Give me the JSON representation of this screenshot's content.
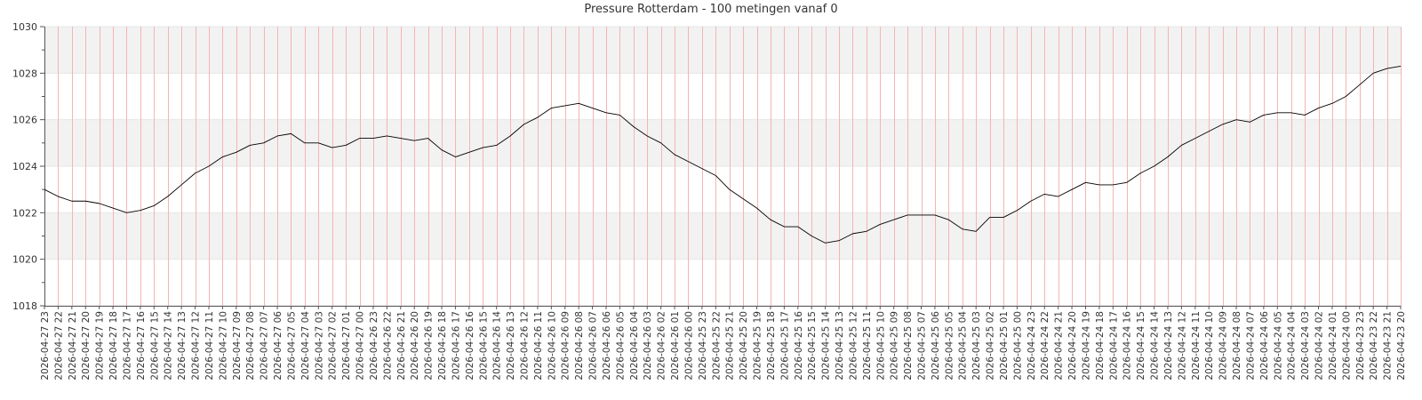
{
  "chart_data": {
    "type": "line",
    "title": "Pressure Rotterdam - 100 metingen vanaf 0",
    "xlabel": "",
    "ylabel": "",
    "ylim": [
      1018,
      1030
    ],
    "yticks": [
      1018,
      1020,
      1022,
      1024,
      1026,
      1028,
      1030
    ],
    "grid": true,
    "legend": "none",
    "x": [
      "2026-04-27 23",
      "2026-04-27 22",
      "2026-04-27 21",
      "2026-04-27 20",
      "2026-04-27 19",
      "2026-04-27 18",
      "2026-04-27 17",
      "2026-04-27 16",
      "2026-04-27 15",
      "2026-04-27 14",
      "2026-04-27 13",
      "2026-04-27 12",
      "2026-04-27 11",
      "2026-04-27 10",
      "2026-04-27 09",
      "2026-04-27 08",
      "2026-04-27 07",
      "2026-04-27 06",
      "2026-04-27 05",
      "2026-04-27 04",
      "2026-04-27 03",
      "2026-04-27 02",
      "2026-04-27 01",
      "2026-04-27 00",
      "2026-04-26 23",
      "2026-04-26 22",
      "2026-04-26 21",
      "2026-04-26 20",
      "2026-04-26 19",
      "2026-04-26 18",
      "2026-04-26 17",
      "2026-04-26 16",
      "2026-04-26 15",
      "2026-04-26 14",
      "2026-04-26 13",
      "2026-04-26 12",
      "2026-04-26 11",
      "2026-04-26 10",
      "2026-04-26 09",
      "2026-04-26 08",
      "2026-04-26 07",
      "2026-04-26 06",
      "2026-04-26 05",
      "2026-04-26 04",
      "2026-04-26 03",
      "2026-04-26 02",
      "2026-04-26 01",
      "2026-04-26 00",
      "2026-04-25 23",
      "2026-04-25 22",
      "2026-04-25 21",
      "2026-04-25 20",
      "2026-04-25 19",
      "2026-04-25 18",
      "2026-04-25 17",
      "2026-04-25 16",
      "2026-04-25 15",
      "2026-04-25 14",
      "2026-04-25 13",
      "2026-04-25 12",
      "2026-04-25 11",
      "2026-04-25 10",
      "2026-04-25 09",
      "2026-04-25 08",
      "2026-04-25 07",
      "2026-04-25 06",
      "2026-04-25 05",
      "2026-04-25 04",
      "2026-04-25 03",
      "2026-04-25 02",
      "2026-04-25 01",
      "2026-04-25 00",
      "2026-04-24 23",
      "2026-04-24 22",
      "2026-04-24 21",
      "2026-04-24 20",
      "2026-04-24 19",
      "2026-04-24 18",
      "2026-04-24 17",
      "2026-04-24 16",
      "2026-04-24 15",
      "2026-04-24 14",
      "2026-04-24 13",
      "2026-04-24 12",
      "2026-04-24 11",
      "2026-04-24 10",
      "2026-04-24 09",
      "2026-04-24 08",
      "2026-04-24 07",
      "2026-04-24 06",
      "2026-04-24 05",
      "2026-04-24 04",
      "2026-04-24 03",
      "2026-04-24 02",
      "2026-04-24 01",
      "2026-04-24 00",
      "2026-04-23 23",
      "2026-04-23 22",
      "2026-04-23 21",
      "2026-04-23 20"
    ],
    "series": [
      {
        "name": "",
        "values": [
          1023.0,
          1022.7,
          1022.5,
          1022.5,
          1022.4,
          1022.2,
          1022.0,
          1022.1,
          1022.3,
          1022.7,
          1023.2,
          1023.7,
          1024.0,
          1024.4,
          1024.6,
          1024.9,
          1025.0,
          1025.3,
          1025.4,
          1025.0,
          1025.0,
          1024.8,
          1024.9,
          1025.2,
          1025.2,
          1025.3,
          1025.2,
          1025.1,
          1025.2,
          1024.7,
          1024.4,
          1024.6,
          1024.8,
          1024.9,
          1025.3,
          1025.8,
          1026.1,
          1026.5,
          1026.6,
          1026.7,
          1026.5,
          1026.3,
          1026.2,
          1025.7,
          1025.3,
          1025.0,
          1024.5,
          1024.2,
          1023.9,
          1023.6,
          1023.0,
          1022.6,
          1022.2,
          1021.7,
          1021.4,
          1021.4,
          1021.0,
          1020.7,
          1020.8,
          1021.1,
          1021.2,
          1021.5,
          1021.7,
          1021.9,
          1021.9,
          1021.9,
          1021.7,
          1021.3,
          1021.2,
          1021.8,
          1021.8,
          1022.1,
          1022.5,
          1022.8,
          1022.7,
          1023.0,
          1023.3,
          1023.2,
          1023.2,
          1023.3,
          1023.7,
          1024.0,
          1024.4,
          1024.9,
          1025.2,
          1025.5,
          1025.8,
          1026.0,
          1025.9,
          1026.2,
          1026.3,
          1026.3,
          1026.2,
          1026.5,
          1026.7,
          1027.0,
          1027.5,
          1028.0,
          1028.2,
          1028.3
        ]
      }
    ],
    "colors": {
      "line": "#000000",
      "band": "#f2f2f2",
      "hgrid": "#e6e6e6",
      "vgrid": "#f5b4b4",
      "axis": "#555555"
    }
  }
}
